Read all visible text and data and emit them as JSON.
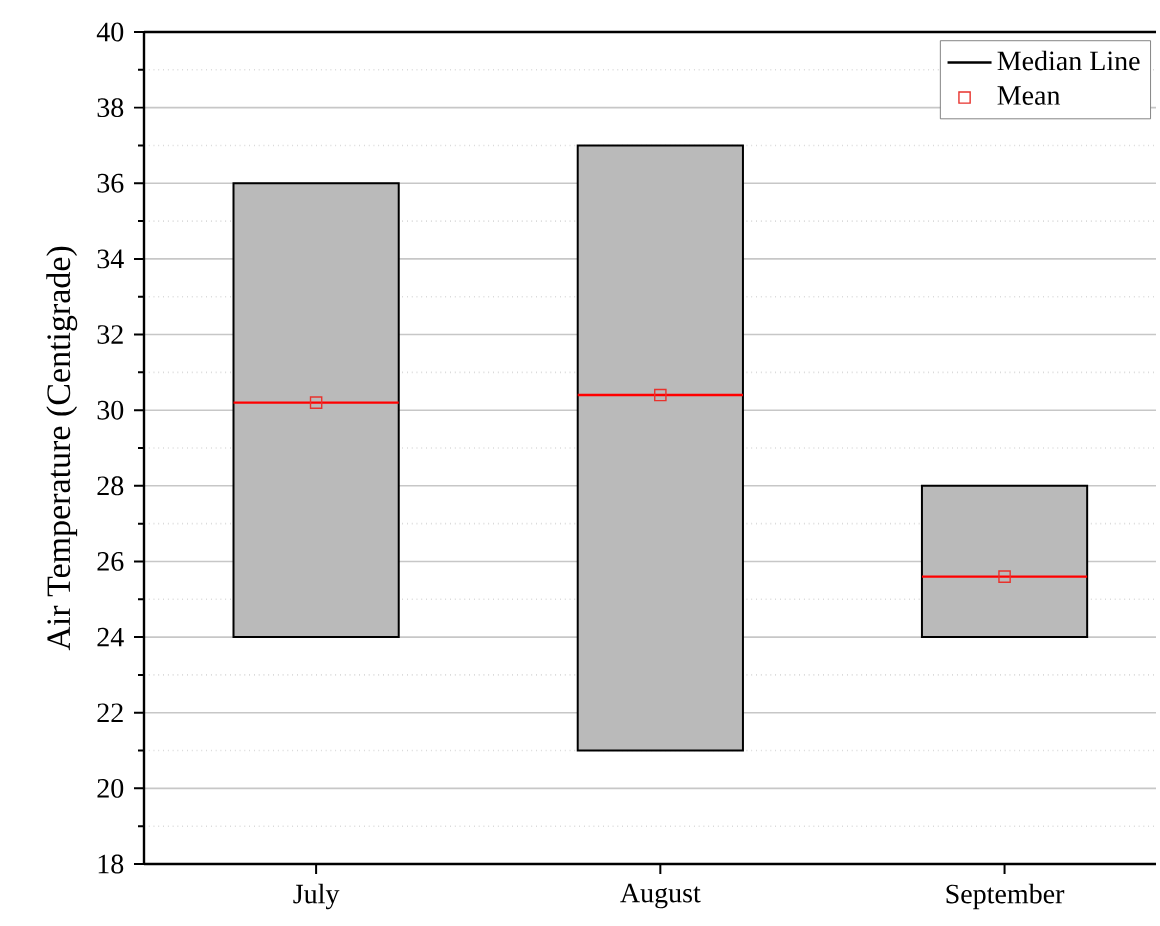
{
  "chart_data": {
    "type": "box",
    "ylabel": "Air Temperature (Centigrade)",
    "categories": [
      "July",
      "August",
      "September"
    ],
    "series": [
      {
        "type": "box",
        "name": "Median Line",
        "color": "#bababa",
        "boxes": [
          {
            "low": 24,
            "q1": 24,
            "median": 30.2,
            "q3": 36,
            "high": 36
          },
          {
            "low": 21,
            "q1": 21,
            "median": 30.4,
            "q3": 37,
            "high": 37
          },
          {
            "low": 24,
            "q1": 24,
            "median": 25.6,
            "q3": 28,
            "high": 28
          }
        ]
      },
      {
        "type": "scatter",
        "name": "Mean",
        "color": "#e8322c",
        "marker": "square",
        "x": [
          "July",
          "August",
          "September"
        ],
        "values": [
          30.2,
          30.4,
          25.6
        ]
      }
    ],
    "ylim": [
      18,
      40
    ],
    "yticks": [
      18,
      20,
      22,
      24,
      26,
      28,
      30,
      32,
      34,
      36,
      38,
      40
    ],
    "grid": "y",
    "legend": "top right"
  }
}
